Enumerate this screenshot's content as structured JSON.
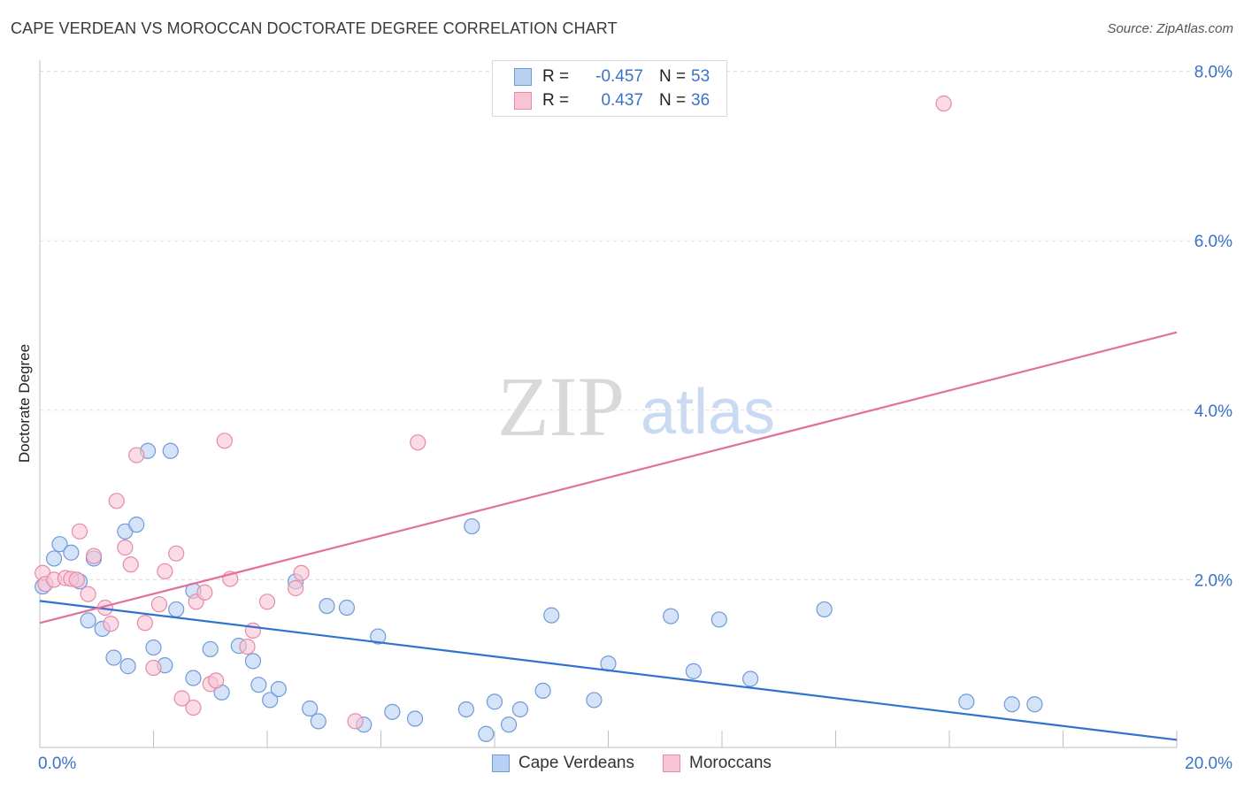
{
  "header": {
    "title": "CAPE VERDEAN VS MOROCCAN DOCTORATE DEGREE CORRELATION CHART",
    "source": "Source: ZipAtlas.com"
  },
  "watermark": {
    "zip": "ZIP",
    "atlas": "atlas"
  },
  "legend": {
    "r_label": "R =",
    "n_label": "N =",
    "series": [
      {
        "r": "-0.457",
        "n": "53"
      },
      {
        "r": "0.437",
        "n": "36"
      }
    ]
  },
  "colors": {
    "blue_fill": "#b8d0f2",
    "blue_stroke": "#6f9ad8",
    "blue_line": "#2f72d0",
    "pink_fill": "#f8c4d4",
    "pink_stroke": "#e889a8",
    "pink_line": "#e3709a",
    "tick_text": "#3a72c8",
    "grid": "#dddddd"
  },
  "chart_data": {
    "type": "scatter",
    "title": "CAPE VERDEAN VS MOROCCAN DOCTORATE DEGREE CORRELATION CHART",
    "xlabel": "",
    "ylabel": "Doctorate Degree",
    "xlim": [
      0,
      20
    ],
    "ylim": [
      0,
      8
    ],
    "x_tick_labels": [
      "0.0%",
      "20.0%"
    ],
    "y_ticks": [
      2,
      4,
      6,
      8
    ],
    "y_tick_labels": [
      "2.0%",
      "4.0%",
      "6.0%",
      "8.0%"
    ],
    "grid": true,
    "series": [
      {
        "name": "Cape Verdeans",
        "color": "#6f9ad8",
        "points": [
          [
            0.05,
            1.92
          ],
          [
            0.25,
            2.25
          ],
          [
            0.35,
            2.42
          ],
          [
            0.55,
            2.32
          ],
          [
            0.7,
            1.98
          ],
          [
            0.85,
            1.52
          ],
          [
            0.95,
            2.25
          ],
          [
            1.1,
            1.42
          ],
          [
            1.3,
            1.08
          ],
          [
            1.5,
            2.57
          ],
          [
            1.55,
            0.98
          ],
          [
            1.7,
            2.65
          ],
          [
            1.9,
            3.52
          ],
          [
            2.0,
            1.2
          ],
          [
            2.2,
            0.99
          ],
          [
            2.3,
            3.52
          ],
          [
            2.4,
            1.65
          ],
          [
            2.7,
            0.84
          ],
          [
            2.7,
            1.87
          ],
          [
            3.0,
            1.18
          ],
          [
            3.2,
            0.67
          ],
          [
            3.5,
            1.22
          ],
          [
            3.75,
            1.04
          ],
          [
            3.85,
            0.76
          ],
          [
            4.05,
            0.58
          ],
          [
            4.2,
            0.71
          ],
          [
            4.5,
            1.98
          ],
          [
            4.75,
            0.48
          ],
          [
            4.9,
            0.33
          ],
          [
            5.05,
            1.69
          ],
          [
            5.4,
            1.67
          ],
          [
            5.7,
            0.29
          ],
          [
            5.95,
            1.33
          ],
          [
            6.2,
            0.44
          ],
          [
            6.6,
            0.36
          ],
          [
            7.5,
            0.47
          ],
          [
            7.6,
            2.63
          ],
          [
            7.85,
            0.18
          ],
          [
            8.0,
            0.56
          ],
          [
            8.25,
            0.29
          ],
          [
            8.45,
            0.47
          ],
          [
            8.85,
            0.69
          ],
          [
            9.0,
            1.58
          ],
          [
            9.75,
            0.58
          ],
          [
            10.0,
            1.01
          ],
          [
            11.1,
            1.57
          ],
          [
            11.5,
            0.92
          ],
          [
            11.95,
            1.53
          ],
          [
            12.5,
            0.83
          ],
          [
            13.8,
            1.65
          ],
          [
            16.3,
            0.56
          ],
          [
            17.1,
            0.53
          ],
          [
            17.5,
            0.53
          ]
        ]
      },
      {
        "name": "Moroccans",
        "color": "#e889a8",
        "points": [
          [
            0.05,
            2.08
          ],
          [
            0.1,
            1.95
          ],
          [
            0.25,
            2.0
          ],
          [
            0.45,
            2.02
          ],
          [
            0.55,
            2.01
          ],
          [
            0.65,
            2.0
          ],
          [
            0.7,
            2.57
          ],
          [
            0.85,
            1.83
          ],
          [
            0.95,
            2.28
          ],
          [
            1.15,
            1.67
          ],
          [
            1.25,
            1.48
          ],
          [
            1.35,
            2.93
          ],
          [
            1.5,
            2.38
          ],
          [
            1.6,
            2.18
          ],
          [
            1.7,
            3.47
          ],
          [
            1.85,
            1.49
          ],
          [
            2.0,
            0.96
          ],
          [
            2.1,
            1.71
          ],
          [
            2.2,
            2.1
          ],
          [
            2.4,
            2.31
          ],
          [
            2.5,
            0.6
          ],
          [
            2.7,
            0.49
          ],
          [
            2.75,
            1.74
          ],
          [
            2.9,
            1.85
          ],
          [
            3.0,
            0.77
          ],
          [
            3.1,
            0.81
          ],
          [
            3.25,
            3.64
          ],
          [
            3.35,
            2.01
          ],
          [
            3.65,
            1.21
          ],
          [
            3.75,
            1.4
          ],
          [
            4.0,
            1.74
          ],
          [
            4.5,
            1.9
          ],
          [
            4.6,
            2.08
          ],
          [
            5.55,
            0.33
          ],
          [
            6.65,
            3.62
          ],
          [
            15.9,
            7.62
          ]
        ]
      }
    ],
    "trend_lines": [
      {
        "series": "Cape Verdeans",
        "x": [
          0,
          20
        ],
        "y": [
          1.75,
          0.11
        ]
      },
      {
        "series": "Moroccans",
        "x": [
          0,
          20
        ],
        "y": [
          1.49,
          4.92
        ]
      }
    ]
  },
  "bottom_legend": [
    "Cape Verdeans",
    "Moroccans"
  ]
}
